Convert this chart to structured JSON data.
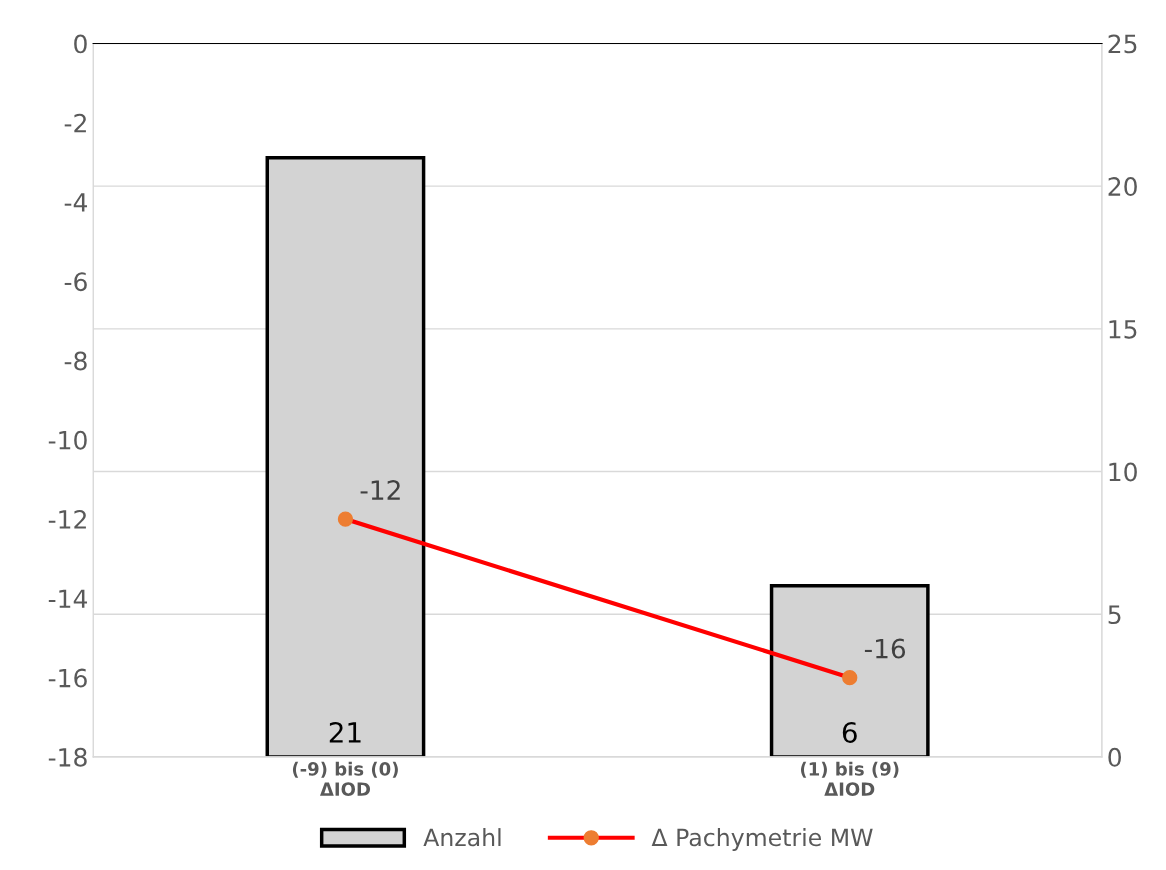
{
  "chart_data": {
    "type": "bar",
    "categories": [
      "(-9) bis (0)\nΔIOD",
      "(1) bis (9)\nΔIOD"
    ],
    "series": [
      {
        "name": "Anzahl",
        "axis": "y2",
        "color": "#d3d3d3",
        "values": [
          21,
          6
        ]
      },
      {
        "name": "Δ Pachymetrie MW",
        "type": "line",
        "axis": "y",
        "color": "#ff0000",
        "values": [
          -12,
          -16
        ]
      }
    ],
    "ylim": [
      -18,
      0
    ],
    "yticks": [
      -18,
      -16,
      -14,
      -12,
      -10,
      -8,
      -6,
      -4,
      -2,
      0
    ],
    "y2lim": [
      0,
      25
    ],
    "y2ticks": [
      0,
      5,
      10,
      15,
      20,
      25
    ],
    "marker": "circle",
    "grid": "y",
    "legend": "bottom",
    "data_labels": true
  }
}
